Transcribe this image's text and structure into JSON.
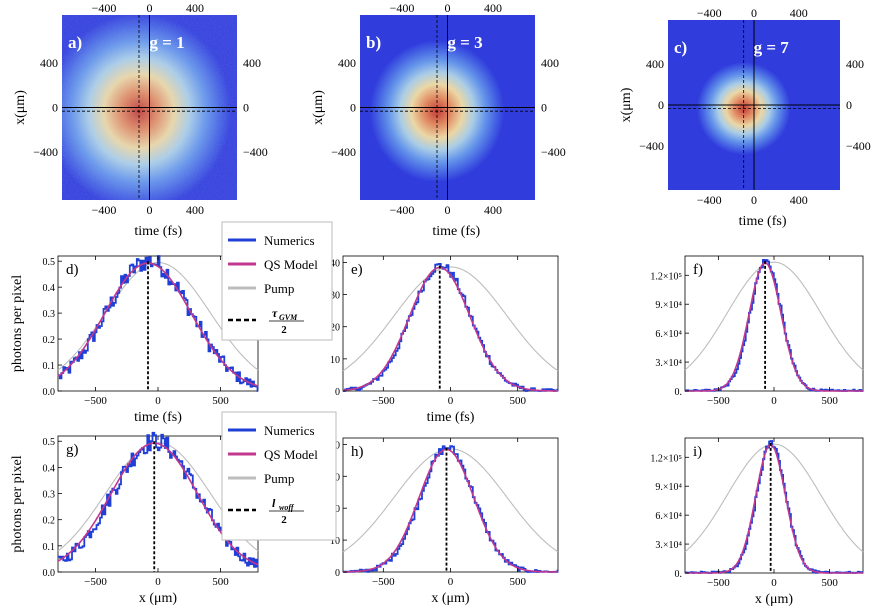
{
  "colors": {
    "numerics": "#1f3fd6",
    "qs_model": "#c2388e",
    "pump": "#bdbdbd",
    "marker": "#000000"
  },
  "maps": [
    {
      "label": "a)",
      "g": "g = 1",
      "sigma": 0.85,
      "noise": 0.22,
      "bg": "#3b52c7"
    },
    {
      "label": "b)",
      "g": "g = 3",
      "sigma": 0.62,
      "noise": 0.0,
      "bg": "#2e3de0"
    },
    {
      "label": "c)",
      "g": "g = 7",
      "sigma": 0.44,
      "noise": 0.0,
      "bg": "#2f3be0"
    }
  ],
  "map_axes": {
    "x_label": "time (fs)",
    "y_label": "x(μm)",
    "x_ticks": [
      "−400",
      "0",
      "400"
    ],
    "y_ticks": [
      "400",
      "0",
      "−400"
    ]
  },
  "legends": [
    {
      "items": [
        "Numerics",
        "QS Model",
        "Pump"
      ],
      "marker_num": "τ",
      "marker_sub": "GVM",
      "marker_den": "2"
    },
    {
      "items": [
        "Numerics",
        "QS Model",
        "Pump"
      ],
      "marker_num": "l",
      "marker_sub": "woff",
      "marker_den": "2"
    }
  ],
  "row_labels": {
    "y_label": "photons  per pixel"
  },
  "chart_data": [
    {
      "type": "line",
      "panel": "d)",
      "xlabel": "time (fs)",
      "ylabel": "photons  per pixel",
      "xlim": [
        -800,
        800
      ],
      "ylim": [
        0,
        0.52
      ],
      "peak_x": -80,
      "width": 340,
      "pump_width": 420,
      "noise": 0.035,
      "yticks": [
        0,
        0.1,
        0.2,
        0.3,
        0.4,
        0.5
      ],
      "ytick_labels": [
        "0.0",
        "0.1",
        "0.2",
        "0.3",
        "0.4",
        "0.5"
      ],
      "xticks": [
        -500,
        0,
        500
      ],
      "xtick_labels": [
        "−500",
        "0",
        "500"
      ],
      "series": [
        {
          "name": "Numerics"
        },
        {
          "name": "QS Model"
        },
        {
          "name": "Pump"
        }
      ]
    },
    {
      "type": "line",
      "panel": "e)",
      "xlabel": "time (fs)",
      "ylabel": "",
      "xlim": [
        -800,
        800
      ],
      "ylim": [
        0,
        42
      ],
      "peak_x": -80,
      "width": 220,
      "pump_width": 420,
      "noise": 1.3,
      "yticks": [
        0,
        10,
        20,
        30,
        40
      ],
      "ytick_labels": [
        "0",
        "10",
        "20",
        "30",
        "40"
      ],
      "xticks": [
        -500,
        0,
        500
      ],
      "xtick_labels": [
        "−500",
        "0",
        "500"
      ],
      "series": [
        {
          "name": "Numerics"
        },
        {
          "name": "QS Model"
        },
        {
          "name": "Pump"
        }
      ]
    },
    {
      "type": "line",
      "panel": "f)",
      "xlabel": "",
      "ylabel": "",
      "xlim": [
        -800,
        800
      ],
      "ylim": [
        0,
        140000
      ],
      "peak_x": -80,
      "width": 140,
      "pump_width": 420,
      "noise": 3500,
      "yticks": [
        0,
        30000,
        60000,
        90000,
        120000
      ],
      "ytick_labels": [
        "0.",
        "3.×10⁴",
        "6.×10⁴",
        "9.×10⁴",
        "1.2×10⁵"
      ],
      "xticks": [
        -500,
        0,
        500
      ],
      "xtick_labels": [
        "−500",
        "0",
        "500"
      ],
      "series": [
        {
          "name": "Numerics"
        },
        {
          "name": "QS Model"
        },
        {
          "name": "Pump"
        }
      ]
    },
    {
      "type": "line",
      "panel": "g)",
      "xlabel": "x (μm)",
      "ylabel": "photons  per pixel",
      "xlim": [
        -800,
        800
      ],
      "ylim": [
        0,
        0.52
      ],
      "peak_x": -30,
      "width": 340,
      "pump_width": 420,
      "noise": 0.035,
      "yticks": [
        0,
        0.1,
        0.2,
        0.3,
        0.4,
        0.5
      ],
      "ytick_labels": [
        "0.0",
        "0.1",
        "0.2",
        "0.3",
        "0.4",
        "0.5"
      ],
      "xticks": [
        -500,
        0,
        500
      ],
      "xtick_labels": [
        "−500",
        "0",
        "500"
      ],
      "series": [
        {
          "name": "Numerics"
        },
        {
          "name": "QS Model"
        },
        {
          "name": "Pump"
        }
      ]
    },
    {
      "type": "line",
      "panel": "h)",
      "xlabel": "x (μm)",
      "ylabel": "",
      "xlim": [
        -800,
        800
      ],
      "ylim": [
        0,
        42
      ],
      "peak_x": -30,
      "width": 200,
      "pump_width": 420,
      "noise": 1.3,
      "yticks": [
        0,
        10,
        20,
        30,
        40
      ],
      "ytick_labels": [
        "0",
        "10",
        "20",
        "30",
        "40"
      ],
      "xticks": [
        -500,
        0,
        500
      ],
      "xtick_labels": [
        "−500",
        "0",
        "500"
      ],
      "series": [
        {
          "name": "Numerics"
        },
        {
          "name": "QS Model"
        },
        {
          "name": "Pump"
        }
      ]
    },
    {
      "type": "line",
      "panel": "i)",
      "xlabel": "x (μm)",
      "ylabel": "",
      "xlim": [
        -800,
        800
      ],
      "ylim": [
        0,
        140000
      ],
      "peak_x": -30,
      "width": 130,
      "pump_width": 420,
      "noise": 3500,
      "yticks": [
        0,
        30000,
        60000,
        90000,
        120000
      ],
      "ytick_labels": [
        "0.",
        "3.×10⁴",
        "6.×10⁴",
        "9.×10⁴",
        "1.2×10⁵"
      ],
      "xticks": [
        -500,
        0,
        500
      ],
      "xtick_labels": [
        "−500",
        "0",
        "500"
      ],
      "series": [
        {
          "name": "Numerics"
        },
        {
          "name": "QS Model"
        },
        {
          "name": "Pump"
        }
      ]
    }
  ]
}
